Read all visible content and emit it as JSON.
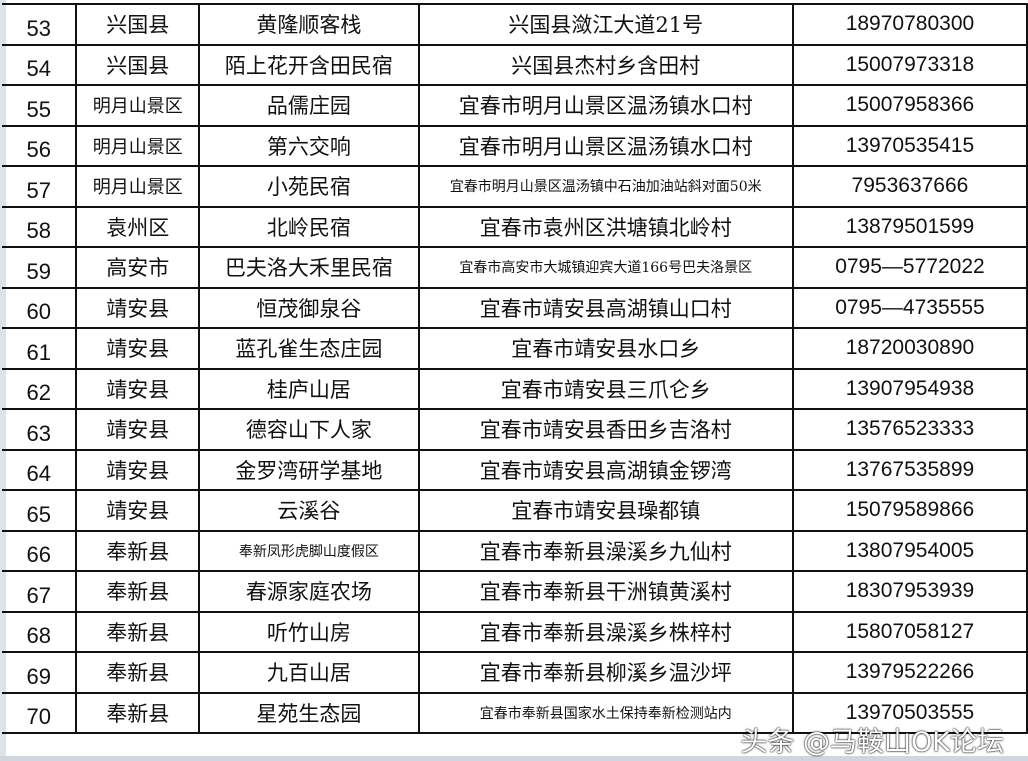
{
  "rows": [
    {
      "no": "53",
      "district": "兴国县",
      "name": "黄隆顺客栈",
      "address": "兴国县潋江大道21号",
      "phone": "18970780300"
    },
    {
      "no": "54",
      "district": "兴国县",
      "name": "陌上花开含田民宿",
      "address": "兴国县杰村乡含田村",
      "phone": "15007973318"
    },
    {
      "no": "55",
      "district": "明月山景区",
      "name": "品儒庄园",
      "address": "宜春市明月山景区温汤镇水口村",
      "phone": "15007958366"
    },
    {
      "no": "56",
      "district": "明月山景区",
      "name": "第六交响",
      "address": "宜春市明月山景区温汤镇水口村",
      "phone": "13970535415"
    },
    {
      "no": "57",
      "district": "明月山景区",
      "name": "小苑民宿",
      "address": "宜春市明月山景区温汤镇中石油加油站斜对面50米",
      "phone": "7953637666"
    },
    {
      "no": "58",
      "district": "袁州区",
      "name": "北岭民宿",
      "address": "宜春市袁州区洪塘镇北岭村",
      "phone": "13879501599"
    },
    {
      "no": "59",
      "district": "高安市",
      "name": "巴夫洛大禾里民宿",
      "address": "宜春市高安市大城镇迎宾大道166号巴夫洛景区",
      "phone": "0795—5772022"
    },
    {
      "no": "60",
      "district": "靖安县",
      "name": "恒茂御泉谷",
      "address": "宜春市靖安县高湖镇山口村",
      "phone": "0795—4735555"
    },
    {
      "no": "61",
      "district": "靖安县",
      "name": "蓝孔雀生态庄园",
      "address": "宜春市靖安县水口乡",
      "phone": "18720030890"
    },
    {
      "no": "62",
      "district": "靖安县",
      "name": "桂庐山居",
      "address": "宜春市靖安县三爪仑乡",
      "phone": "13907954938"
    },
    {
      "no": "63",
      "district": "靖安县",
      "name": "德容山下人家",
      "address": "宜春市靖安县香田乡吉洛村",
      "phone": "13576523333"
    },
    {
      "no": "64",
      "district": "靖安县",
      "name": "金罗湾研学基地",
      "address": "宜春市靖安县高湖镇金锣湾",
      "phone": "13767535899"
    },
    {
      "no": "65",
      "district": "靖安县",
      "name": "云溪谷",
      "address": "宜春市靖安县璪都镇",
      "phone": "15079589866"
    },
    {
      "no": "66",
      "district": "奉新县",
      "name": "奉新凤形虎脚山度假区",
      "address": "宜春市奉新县澡溪乡九仙村",
      "phone": "13807954005"
    },
    {
      "no": "67",
      "district": "奉新县",
      "name": "春源家庭农场",
      "address": "宜春市奉新县干洲镇黄溪村",
      "phone": "18307953939"
    },
    {
      "no": "68",
      "district": "奉新县",
      "name": "听竹山房",
      "address": "宜春市奉新县澡溪乡株梓村",
      "phone": "15807058127"
    },
    {
      "no": "69",
      "district": "奉新县",
      "name": "九百山居",
      "address": "宜春市奉新县柳溪乡温沙坪",
      "phone": "13979522266"
    },
    {
      "no": "70",
      "district": "奉新县",
      "name": "星苑生态园",
      "address": "宜春市奉新县国家水土保持奉新检测站内",
      "phone": "13970503555"
    }
  ],
  "watermark": "头条 @马鞍山OK论坛"
}
